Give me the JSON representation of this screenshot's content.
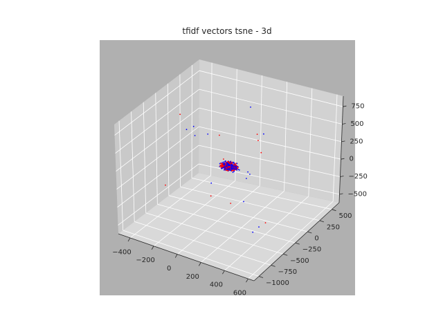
{
  "chart_data": {
    "type": "scatter",
    "projection": "3d",
    "title": "tfidf vectors tsne - 3d",
    "xlabel": "",
    "ylabel": "",
    "zlabel": "",
    "grid": true,
    "xlim": [
      -500,
      650
    ],
    "ylim": [
      -1100,
      650
    ],
    "zlim": [
      -620,
      900
    ],
    "x_ticks": [
      -400,
      -200,
      0,
      200,
      400,
      600
    ],
    "y_ticks": [
      -1000,
      -750,
      -500,
      -250,
      0,
      250,
      500
    ],
    "z_ticks": [
      -500,
      -250,
      0,
      250,
      500,
      750
    ],
    "x_tick_labels": [
      "−400",
      "−200",
      "0",
      "200",
      "400",
      "600"
    ],
    "y_tick_labels": [
      "−1000",
      "−750",
      "−500",
      "−250",
      "0",
      "250",
      "500"
    ],
    "z_tick_labels": [
      "−500",
      "−250",
      "0",
      "250",
      "500",
      "750"
    ],
    "colors": {
      "pane": "#d2d2d2",
      "background": "#b0b0b0",
      "grid": "#ffffff",
      "series_a": "#0000ff",
      "series_b": "#ff0000"
    },
    "cluster": {
      "center": [
        0,
        0,
        0
      ],
      "spread": [
        45,
        40,
        35
      ]
    },
    "series": [
      {
        "color": "#0000ff",
        "points": [
          [
            -330,
            -50,
            380
          ],
          [
            -300,
            20,
            400
          ],
          [
            -250,
            -80,
            350
          ],
          [
            -200,
            60,
            320
          ],
          [
            120,
            400,
            280
          ],
          [
            260,
            -300,
            120
          ],
          [
            380,
            -650,
            60
          ],
          [
            560,
            -780,
            -120
          ],
          [
            600,
            -1000,
            -40
          ],
          [
            150,
            50,
            860
          ],
          [
            -50,
            -250,
            -120
          ],
          [
            90,
            200,
            -180
          ],
          [
            200,
            -120,
            80
          ]
        ]
      },
      {
        "color": "#ff0000",
        "points": [
          [
            -500,
            250,
            360
          ],
          [
            -450,
            -200,
            -360
          ],
          [
            210,
            60,
            420
          ],
          [
            340,
            -200,
            460
          ],
          [
            150,
            -350,
            -250
          ],
          [
            -120,
            -80,
            -420
          ],
          [
            480,
            -450,
            -300
          ],
          [
            -200,
            300,
            180
          ],
          [
            60,
            420,
            240
          ]
        ]
      }
    ]
  }
}
